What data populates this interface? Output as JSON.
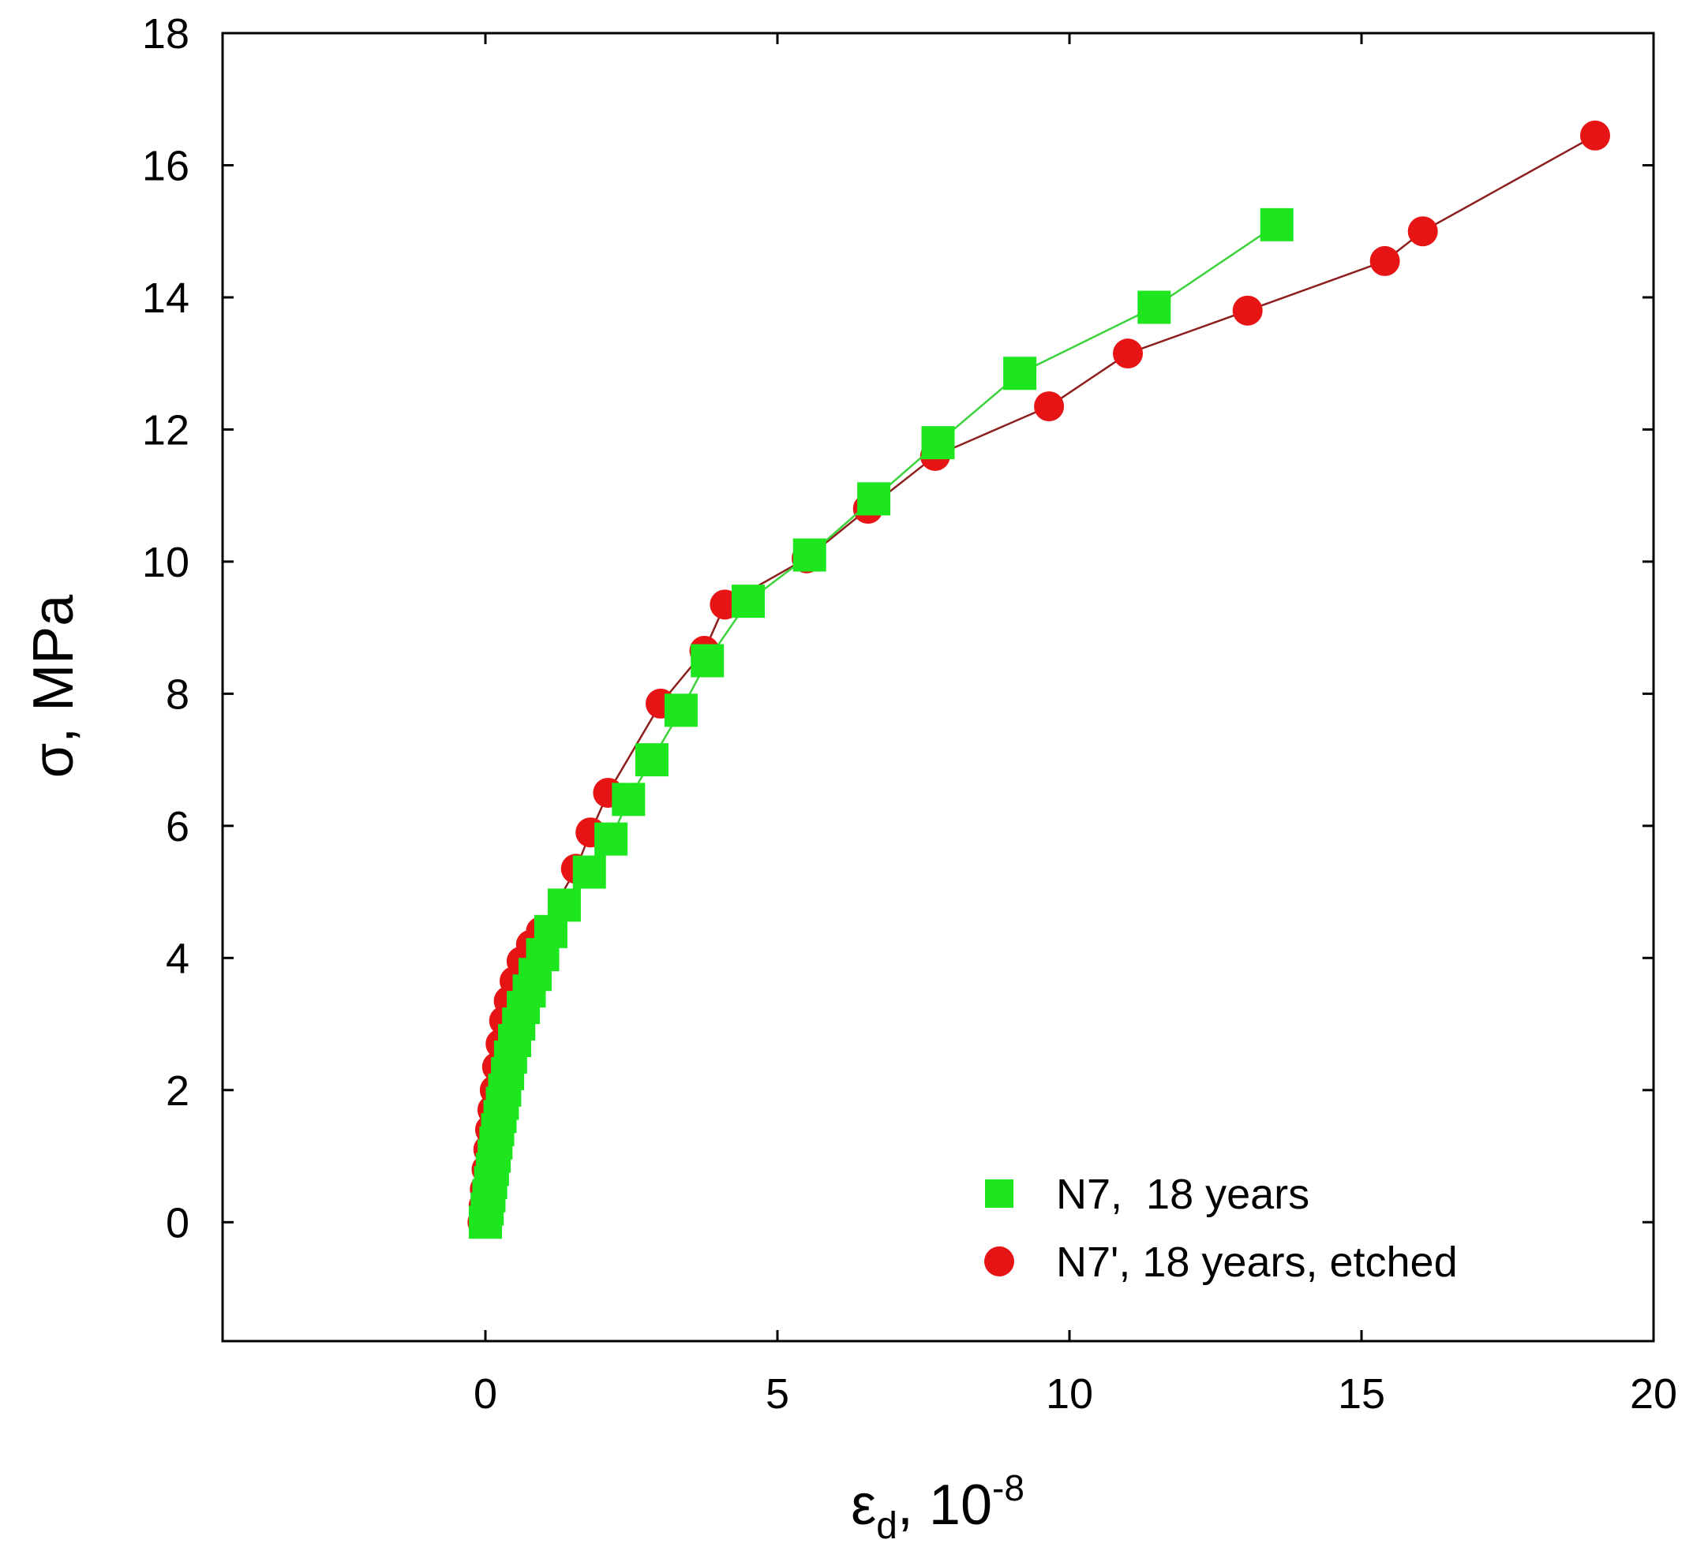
{
  "chart_data": {
    "type": "scatter",
    "title": "",
    "xlabel": {
      "symbol": "ε",
      "subscript": "d",
      "unit_base": ", 10",
      "unit_exp": "-8"
    },
    "ylabel": "σ, MPa",
    "xlim": [
      -4.5,
      20
    ],
    "ylim": [
      -1.8,
      18
    ],
    "xticks": [
      0,
      5,
      10,
      15,
      20
    ],
    "yticks": [
      0,
      2,
      4,
      6,
      8,
      10,
      12,
      14,
      16,
      18
    ],
    "grid": false,
    "legend_position": "bottom-right",
    "series": [
      {
        "name": "N7,  18 years",
        "marker": "square",
        "color": "#1ee61e",
        "line_color": "#3cd23c",
        "x": [
          0.0,
          0.03,
          0.06,
          0.09,
          0.12,
          0.15,
          0.18,
          0.21,
          0.25,
          0.29,
          0.33,
          0.38,
          0.43,
          0.5,
          0.57,
          0.65,
          0.75,
          0.85,
          0.98,
          1.12,
          1.35,
          1.78,
          2.15,
          2.45,
          2.85,
          3.35,
          3.8,
          4.5,
          5.55,
          6.65,
          7.75,
          9.15,
          11.45,
          13.55
        ],
        "y": [
          0.0,
          0.2,
          0.4,
          0.6,
          0.8,
          1.0,
          1.2,
          1.4,
          1.6,
          1.8,
          2.0,
          2.25,
          2.5,
          2.75,
          3.0,
          3.25,
          3.5,
          3.75,
          4.05,
          4.4,
          4.8,
          5.3,
          5.8,
          6.4,
          7.0,
          7.75,
          8.5,
          9.4,
          10.1,
          10.95,
          11.8,
          12.85,
          13.85,
          15.1
        ]
      },
      {
        "name": "N7', 18 years, etched",
        "marker": "circle",
        "color": "#e61414",
        "line_color": "#8c1e1e",
        "x": [
          -0.05,
          -0.03,
          -0.01,
          0.02,
          0.05,
          0.08,
          0.12,
          0.16,
          0.2,
          0.26,
          0.32,
          0.4,
          0.5,
          0.62,
          0.78,
          0.95,
          1.55,
          1.8,
          2.1,
          3.0,
          3.75,
          4.1,
          5.5,
          6.55,
          7.7,
          9.65,
          11.0,
          13.05,
          15.4,
          16.05,
          19.0
        ],
        "y": [
          0.0,
          0.25,
          0.5,
          0.8,
          1.1,
          1.4,
          1.7,
          2.0,
          2.35,
          2.7,
          3.05,
          3.35,
          3.65,
          3.95,
          4.2,
          4.4,
          5.35,
          5.9,
          6.5,
          7.85,
          8.65,
          9.35,
          10.05,
          10.8,
          11.6,
          12.35,
          13.15,
          13.8,
          14.55,
          15.0,
          16.45
        ]
      }
    ]
  }
}
